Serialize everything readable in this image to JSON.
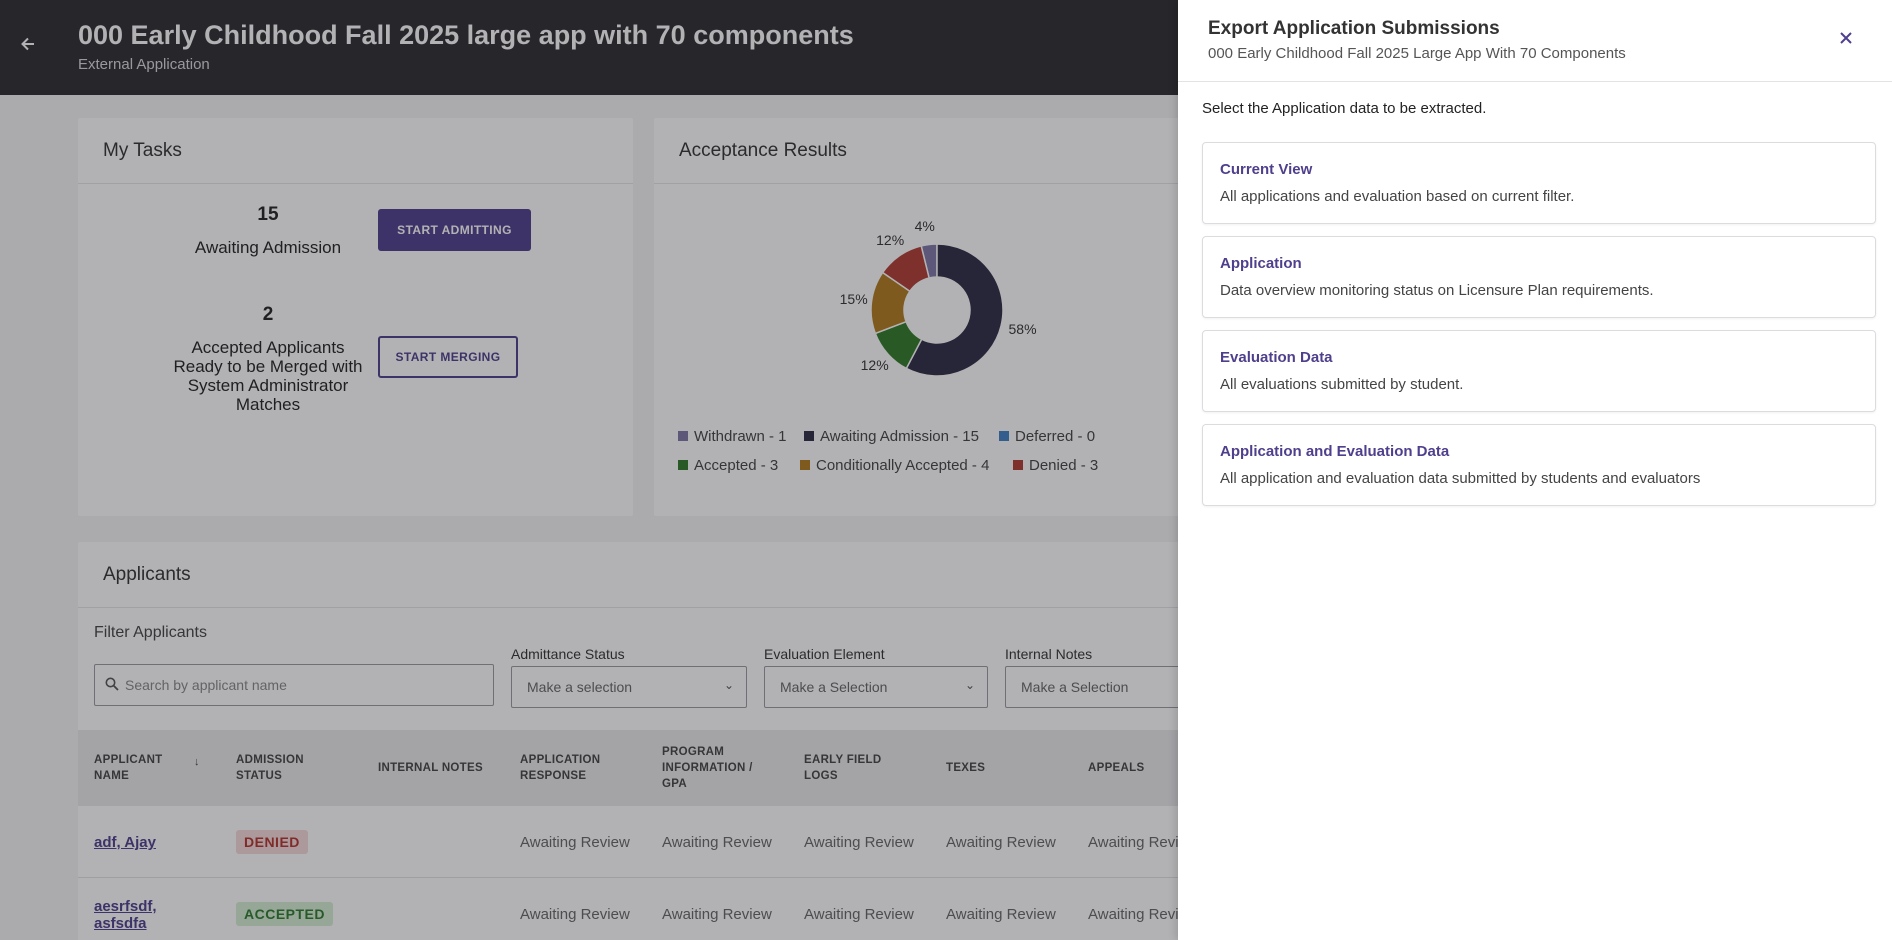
{
  "header": {
    "title": "000 Early Childhood Fall 2025 large app with 70 components",
    "subtitle": "External Application",
    "back_icon": "arrow-left-icon"
  },
  "tasks": {
    "title": "My Tasks",
    "items": [
      {
        "count": "15",
        "label": "Awaiting Admission",
        "button": "START ADMITTING"
      },
      {
        "count": "2",
        "label": "Accepted Applicants Ready to be Merged with System Administrator Matches",
        "button": "START MERGING"
      }
    ]
  },
  "acceptance": {
    "title": "Acceptance Results",
    "legend": [
      {
        "label": "Withdrawn - 1",
        "color": "#7e76a8"
      },
      {
        "label": "Awaiting Admission - 15",
        "color": "#2c2a44"
      },
      {
        "label": "Deferred - 0",
        "color": "#3f7fc4"
      },
      {
        "label": "Accepted - 3",
        "color": "#2f7a27"
      },
      {
        "label": "Conditionally Accepted - 4",
        "color": "#b07a1c"
      },
      {
        "label": "Denied - 3",
        "color": "#b03a33"
      }
    ]
  },
  "chart_data": {
    "type": "pie",
    "donut": true,
    "categories": [
      "Withdrawn",
      "Awaiting Admission",
      "Deferred",
      "Accepted",
      "Conditionally Accepted",
      "Denied"
    ],
    "values": [
      1,
      15,
      0,
      3,
      4,
      3
    ],
    "percent_labels": [
      "4%",
      "58%",
      "",
      "12%",
      "15%",
      "12%"
    ]
  },
  "applicants": {
    "title": "Applicants",
    "filter_title": "Filter Applicants",
    "search_placeholder": "Search by applicant name",
    "filters": [
      {
        "label": "Admittance Status",
        "value": "Make a selection"
      },
      {
        "label": "Evaluation Element",
        "value": "Make a Selection"
      },
      {
        "label": "Internal Notes",
        "value": "Make a Selection"
      }
    ],
    "columns": [
      "APPLICANT NAME",
      "ADMISSION STATUS",
      "INTERNAL NOTES",
      "APPLICATION RESPONSE",
      "PROGRAM INFORMATION / GPA",
      "EARLY FIELD LOGS",
      "TEXES",
      "APPEALS"
    ],
    "rows": [
      {
        "name": "adf, Ajay",
        "status": "DENIED",
        "values": [
          "Awaiting Review",
          "Awaiting Review",
          "Awaiting Review",
          "Awaiting Review",
          "Awaiting Revi"
        ]
      },
      {
        "name": "aesrfsdf, asfsdfa",
        "status": "ACCEPTED",
        "values": [
          "Awaiting Review",
          "Awaiting Review",
          "Awaiting Review",
          "Awaiting Review",
          "Awaiting Revi"
        ]
      }
    ]
  },
  "panel": {
    "title": "Export Application Submissions",
    "subtitle": "000 Early Childhood Fall 2025 Large App With 70 Components",
    "instruction": "Select the Application data to be extracted.",
    "options": [
      {
        "title": "Current View",
        "desc": "All applications and evaluation based on current filter."
      },
      {
        "title": "Application",
        "desc": "Data overview monitoring status on Licensure Plan requirements."
      },
      {
        "title": "Evaluation Data",
        "desc": "All evaluations submitted by student."
      },
      {
        "title": "Application and Evaluation Data",
        "desc": "All application and evaluation data submitted by students and evaluators"
      }
    ]
  }
}
